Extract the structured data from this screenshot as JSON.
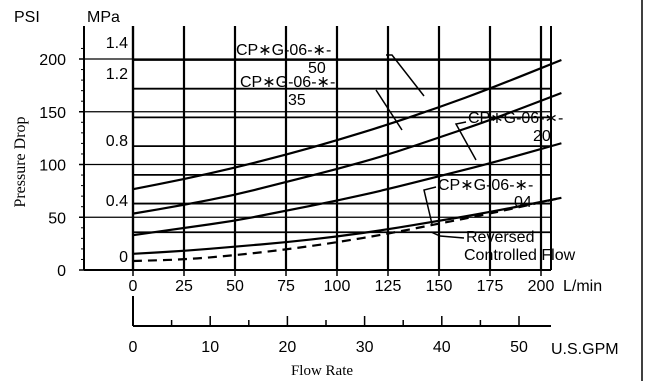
{
  "chart_data": {
    "type": "line",
    "ylabel": "Pressure Drop",
    "xlabel": "Flow Rate",
    "y_unit_psi": "PSI",
    "y_unit_mpa": "MPa",
    "x_unit_lmin": "L/min",
    "x_unit_gpm": "U.S.GPM",
    "x_ticks_lmin": [
      "0",
      "25",
      "50",
      "75",
      "100",
      "125",
      "150",
      "175",
      "200"
    ],
    "x_ticks_gpm": [
      "0",
      "10",
      "20",
      "30",
      "40",
      "50"
    ],
    "y_ticks_psi": [
      "0",
      "50",
      "100",
      "150",
      "200"
    ],
    "y_ticks_mpa": [
      "0",
      "0.4",
      "0.8",
      "1.2",
      "1.4"
    ],
    "xlim_lmin": [
      0,
      210
    ],
    "ylim_mpa": [
      -0.05,
      1.45
    ],
    "grid": true,
    "series": [
      {
        "name": "CP∗G-06-∗-50",
        "x": [
          0,
          25,
          50,
          75,
          100,
          125,
          150,
          175,
          210
        ],
        "y": [
          0.5,
          0.57,
          0.65,
          0.74,
          0.84,
          0.95,
          1.07,
          1.2,
          1.4
        ]
      },
      {
        "name": "CP∗G-06-∗-35",
        "x": [
          0,
          25,
          50,
          75,
          100,
          125,
          150,
          175,
          210
        ],
        "y": [
          0.33,
          0.39,
          0.46,
          0.55,
          0.64,
          0.74,
          0.86,
          0.98,
          1.17
        ]
      },
      {
        "name": "CP∗G-06-∗-20",
        "x": [
          0,
          25,
          50,
          75,
          100,
          125,
          150,
          175,
          210
        ],
        "y": [
          0.18,
          0.23,
          0.28,
          0.35,
          0.42,
          0.5,
          0.59,
          0.68,
          0.82
        ]
      },
      {
        "name": "CP∗G-06-∗-04",
        "x": [
          0,
          25,
          50,
          75,
          100,
          125,
          150,
          175,
          210
        ],
        "y": [
          0.05,
          0.07,
          0.1,
          0.13,
          0.17,
          0.22,
          0.28,
          0.34,
          0.44
        ]
      },
      {
        "name": "Reversed Controlled Flow",
        "x": [
          0,
          25,
          50,
          75,
          100,
          125,
          150,
          175,
          210
        ],
        "y": [
          0.0,
          0.01,
          0.04,
          0.08,
          0.13,
          0.19,
          0.26,
          0.33,
          0.44
        ]
      }
    ],
    "annotations": [
      {
        "line1": "CP∗G-06-∗-",
        "line2": "50"
      },
      {
        "line1": "CP∗G-06-∗-",
        "line2": "35"
      },
      {
        "line1": "CP∗G-06-∗-",
        "line2": "20"
      },
      {
        "line1": "CP∗G-06-∗-",
        "line2": "04"
      },
      {
        "line1": "Reversed",
        "line2": "Controlled Flow"
      }
    ]
  }
}
